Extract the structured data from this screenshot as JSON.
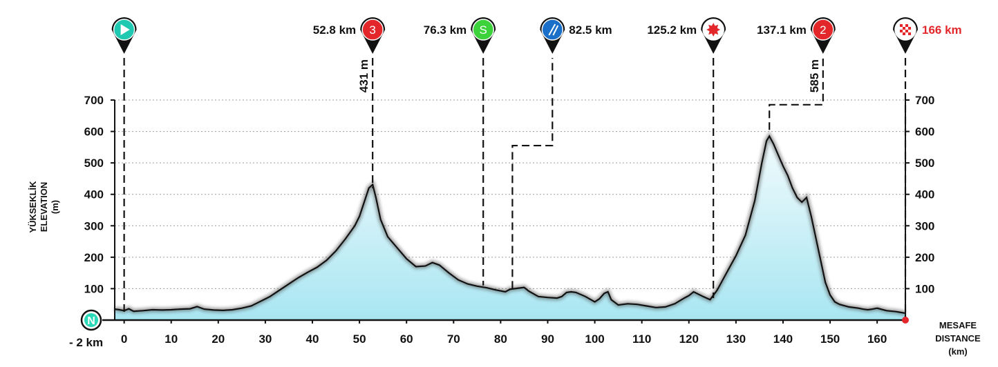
{
  "chart_data": {
    "type": "area",
    "title": "",
    "ylabel_lines": [
      "YÜKSEKLİK",
      "ELEVATION",
      "(m)"
    ],
    "xlabel_lines": [
      "MESAFE",
      "DISTANCE",
      "(km)"
    ],
    "xlim": [
      -2,
      166
    ],
    "ylim": [
      0,
      700
    ],
    "x_ticks": [
      0,
      10,
      20,
      30,
      40,
      50,
      60,
      70,
      80,
      90,
      100,
      110,
      120,
      130,
      140,
      150,
      160
    ],
    "y_ticks": [
      100,
      200,
      300,
      400,
      500,
      600,
      700
    ],
    "grid": true,
    "start_label": "- 2 km",
    "start_badge": "N",
    "colors": {
      "fill_top": "#f2fbfd",
      "fill_bottom": "#a8e6f2",
      "line": "#111111",
      "finish": "#e3262a"
    },
    "series": [
      {
        "x": [
          -2,
          -1,
          0,
          1,
          2,
          4,
          6,
          8,
          10,
          12,
          14,
          15.5,
          17,
          19,
          21,
          23,
          25,
          27,
          29,
          31,
          33,
          35,
          37,
          39,
          41,
          43,
          45,
          47,
          49,
          50,
          51,
          52,
          52.8,
          53.5,
          54.5,
          56,
          58,
          60,
          62,
          64,
          65.5,
          67,
          69,
          71,
          73,
          75,
          77,
          79,
          81,
          82,
          83,
          84,
          85,
          86,
          88,
          90,
          92,
          93,
          94,
          95,
          96,
          98,
          100,
          101,
          102,
          102.8,
          103.5,
          105,
          107,
          109,
          111,
          113,
          115,
          117,
          119,
          120,
          121,
          123,
          124.5,
          126,
          128,
          130,
          132,
          134,
          135.5,
          136.5,
          137.1,
          138,
          139,
          140,
          141,
          142,
          143,
          144,
          145,
          146,
          147,
          148,
          149,
          150,
          151,
          152,
          154,
          156,
          157,
          158,
          159,
          160,
          162,
          164,
          166
        ],
        "y": [
          35,
          33,
          30,
          36,
          28,
          30,
          33,
          32,
          33,
          35,
          36,
          43,
          35,
          32,
          31,
          33,
          38,
          45,
          60,
          75,
          95,
          115,
          135,
          152,
          168,
          190,
          220,
          258,
          300,
          330,
          375,
          420,
          431,
          390,
          320,
          265,
          230,
          195,
          170,
          172,
          183,
          175,
          150,
          128,
          115,
          108,
          103,
          96,
          90,
          98,
          100,
          102,
          104,
          92,
          75,
          72,
          70,
          75,
          88,
          90,
          88,
          75,
          58,
          68,
          85,
          90,
          65,
          48,
          52,
          50,
          45,
          40,
          42,
          52,
          70,
          78,
          90,
          75,
          65,
          95,
          150,
          205,
          270,
          380,
          500,
          570,
          585,
          560,
          525,
          490,
          460,
          420,
          390,
          375,
          390,
          330,
          260,
          190,
          120,
          80,
          58,
          50,
          42,
          38,
          35,
          33,
          35,
          38,
          30,
          27,
          22
        ]
      }
    ],
    "markers": [
      {
        "km": 0,
        "label": "",
        "icon": "start-flag-icon",
        "color": "#1fc9b1",
        "text": "",
        "label_side": "none",
        "leader": "straight",
        "leader_top_km": 0,
        "leader_top_y": 20
      },
      {
        "km": 52.8,
        "label": "52.8 km",
        "icon": "climb-category-icon",
        "color": "#e3262a",
        "text": "3",
        "label_side": "left",
        "leader": "straight",
        "leader_top_km": 52.8,
        "leader_top_y": 420,
        "alt_label": "431 m"
      },
      {
        "km": 76.3,
        "label": "76.3 km",
        "icon": "sprint-icon",
        "color": "#3cd23c",
        "text": "S",
        "label_side": "left",
        "leader": "straight",
        "leader_top_km": 76.3,
        "leader_top_y": 110
      },
      {
        "km": 82.5,
        "label": "82.5 km",
        "icon": "feed-zone-icon",
        "color": "#1a6fc9",
        "text": "",
        "label_side": "right",
        "leader": "bent",
        "bend_km": 91,
        "leader_top_km": 82.5,
        "leader_top_y": 100,
        "bend_y": 555
      },
      {
        "km": 125.2,
        "label": "125.2 km",
        "icon": "bonus-point-icon",
        "color": "#e3262a",
        "text": "",
        "label_side": "left",
        "leader": "straight",
        "leader_top_km": 125.2,
        "leader_top_y": 70
      },
      {
        "km": 137.1,
        "label": "137.1 km",
        "icon": "climb-category-icon",
        "color": "#e3262a",
        "text": "2",
        "label_side": "left",
        "leader": "bent",
        "bend_km": 148.5,
        "leader_top_km": 137.1,
        "leader_top_y": 605,
        "bend_y": 685,
        "alt_label": "585 m"
      },
      {
        "km": 166,
        "label": "166 km",
        "icon": "finish-flag-icon",
        "color": "#ffffff",
        "text": "",
        "label_side": "right",
        "leader": "straight",
        "leader_top_km": 166,
        "leader_top_y": 10
      }
    ]
  }
}
